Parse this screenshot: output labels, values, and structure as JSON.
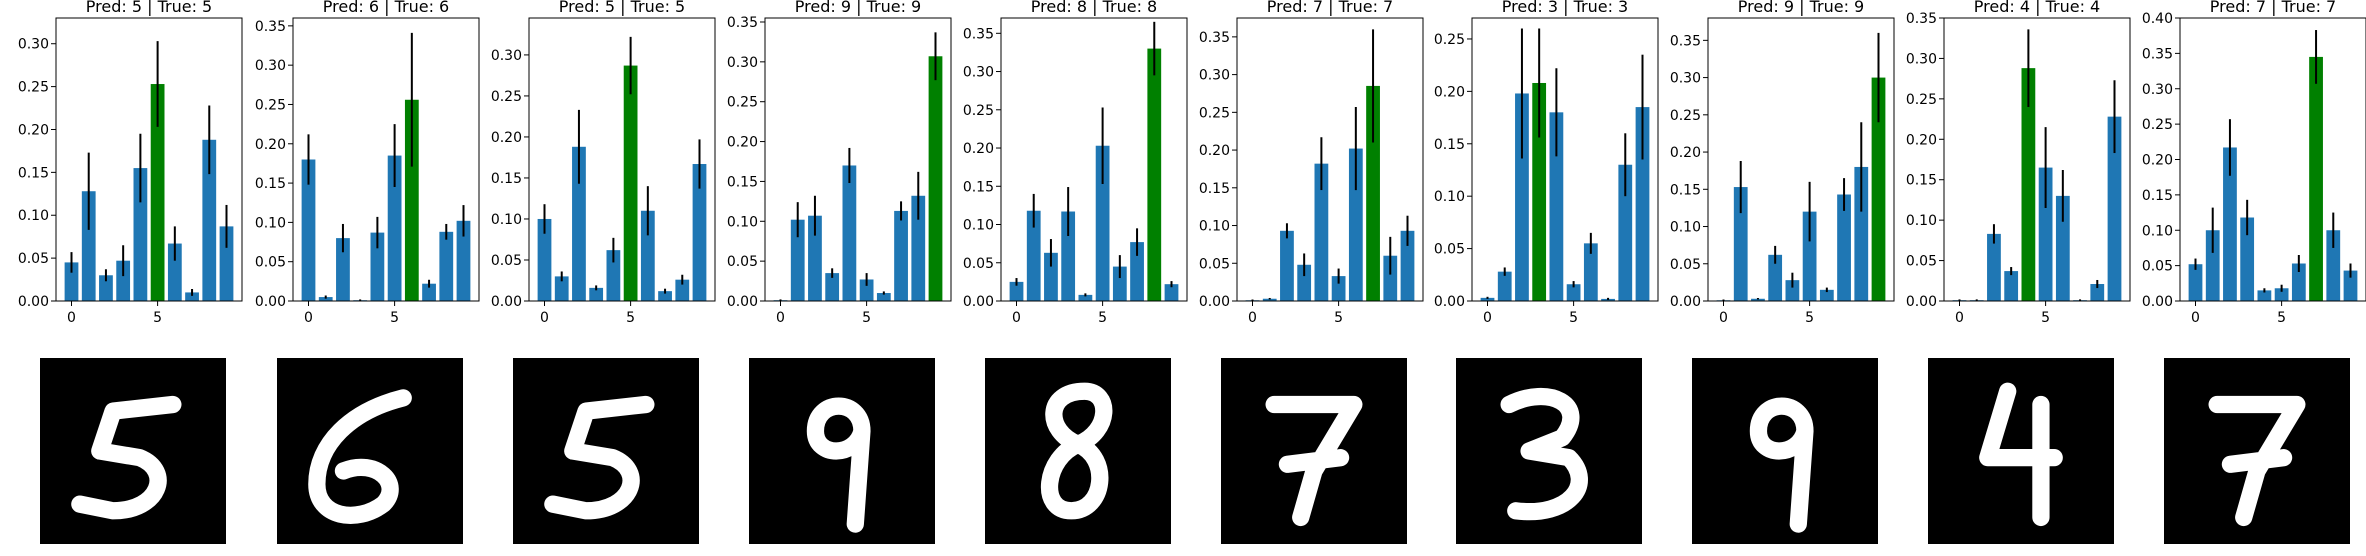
{
  "colors": {
    "bar": "#1f77b4",
    "highlight": "#008000",
    "error": "#000000",
    "axis": "#000000",
    "image_bg": "#000000",
    "digit": "#ffffff"
  },
  "panels_meta": {
    "x_ticks": [
      0,
      5
    ],
    "x_range": [
      -0.9,
      9.9
    ]
  },
  "chart_data": [
    {
      "type": "bar",
      "title": "Pred: 5 | True: 5",
      "highlight_index": 5,
      "categories": [
        0,
        1,
        2,
        3,
        4,
        5,
        6,
        7,
        8,
        9
      ],
      "values": [
        0.045,
        0.128,
        0.03,
        0.047,
        0.155,
        0.253,
        0.067,
        0.01,
        0.188,
        0.087
      ],
      "errors": [
        0.012,
        0.045,
        0.007,
        0.018,
        0.04,
        0.05,
        0.02,
        0.004,
        0.04,
        0.025
      ],
      "ylim": [
        0,
        0.33
      ],
      "yticks": [
        "0.00",
        "0.05",
        "0.10",
        "0.15",
        "0.20",
        "0.25",
        "0.30"
      ],
      "digit": "5"
    },
    {
      "type": "bar",
      "title": "Pred: 6 | True: 6",
      "highlight_index": 6,
      "categories": [
        0,
        1,
        2,
        3,
        4,
        5,
        6,
        7,
        8,
        9
      ],
      "values": [
        0.18,
        0.005,
        0.08,
        0.001,
        0.087,
        0.185,
        0.256,
        0.022,
        0.088,
        0.102
      ],
      "errors": [
        0.032,
        0.002,
        0.018,
        0.001,
        0.02,
        0.04,
        0.085,
        0.005,
        0.01,
        0.02
      ],
      "ylim": [
        0,
        0.36
      ],
      "yticks": [
        "0.00",
        "0.05",
        "0.10",
        "0.15",
        "0.20",
        "0.25",
        "0.30",
        "0.35"
      ],
      "digit": "6"
    },
    {
      "type": "bar",
      "title": "Pred: 5 | True: 5",
      "highlight_index": 5,
      "categories": [
        0,
        1,
        2,
        3,
        4,
        5,
        6,
        7,
        8,
        9
      ],
      "values": [
        0.1,
        0.03,
        0.188,
        0.016,
        0.062,
        0.287,
        0.11,
        0.012,
        0.026,
        0.167
      ],
      "errors": [
        0.018,
        0.006,
        0.045,
        0.003,
        0.015,
        0.035,
        0.03,
        0.003,
        0.006,
        0.03
      ],
      "ylim": [
        0,
        0.345
      ],
      "yticks": [
        "0.00",
        "0.05",
        "0.10",
        "0.15",
        "0.20",
        "0.25",
        "0.30"
      ],
      "digit": "5"
    },
    {
      "type": "bar",
      "title": "Pred: 9 | True: 9",
      "highlight_index": 9,
      "categories": [
        0,
        1,
        2,
        3,
        4,
        5,
        6,
        7,
        8,
        9
      ],
      "values": [
        0.001,
        0.102,
        0.107,
        0.035,
        0.17,
        0.027,
        0.01,
        0.113,
        0.132,
        0.307
      ],
      "errors": [
        0.001,
        0.022,
        0.025,
        0.006,
        0.022,
        0.008,
        0.002,
        0.012,
        0.03,
        0.03
      ],
      "ylim": [
        0,
        0.355
      ],
      "yticks": [
        "0.00",
        "0.05",
        "0.10",
        "0.15",
        "0.20",
        "0.25",
        "0.30",
        "0.35"
      ],
      "digit": "9"
    },
    {
      "type": "bar",
      "title": "Pred: 8 | True: 8",
      "highlight_index": 8,
      "categories": [
        0,
        1,
        2,
        3,
        4,
        5,
        6,
        7,
        8,
        9
      ],
      "values": [
        0.025,
        0.118,
        0.063,
        0.117,
        0.008,
        0.203,
        0.045,
        0.077,
        0.33,
        0.022
      ],
      "errors": [
        0.005,
        0.022,
        0.018,
        0.032,
        0.002,
        0.05,
        0.015,
        0.018,
        0.035,
        0.004
      ],
      "ylim": [
        0,
        0.37
      ],
      "yticks": [
        "0.00",
        "0.05",
        "0.10",
        "0.15",
        "0.20",
        "0.25",
        "0.30",
        "0.35"
      ],
      "digit": "8"
    },
    {
      "type": "bar",
      "title": "Pred: 7 | True: 7",
      "highlight_index": 7,
      "categories": [
        0,
        1,
        2,
        3,
        4,
        5,
        6,
        7,
        8,
        9
      ],
      "values": [
        0.001,
        0.003,
        0.093,
        0.048,
        0.182,
        0.033,
        0.202,
        0.285,
        0.06,
        0.093
      ],
      "errors": [
        0.001,
        0.001,
        0.01,
        0.015,
        0.035,
        0.01,
        0.055,
        0.075,
        0.025,
        0.02
      ],
      "ylim": [
        0,
        0.375
      ],
      "yticks": [
        "0.00",
        "0.05",
        "0.10",
        "0.15",
        "0.20",
        "0.25",
        "0.30",
        "0.35"
      ],
      "digit": "7"
    },
    {
      "type": "bar",
      "title": "Pred: 3 | True: 3",
      "highlight_index": 3,
      "categories": [
        0,
        1,
        2,
        3,
        4,
        5,
        6,
        7,
        8,
        9
      ],
      "values": [
        0.003,
        0.028,
        0.198,
        0.208,
        0.18,
        0.016,
        0.055,
        0.002,
        0.13,
        0.185
      ],
      "errors": [
        0.001,
        0.004,
        0.062,
        0.052,
        0.042,
        0.003,
        0.01,
        0.001,
        0.03,
        0.05
      ],
      "ylim": [
        0,
        0.27
      ],
      "yticks": [
        "0.00",
        "0.05",
        "0.10",
        "0.15",
        "0.20",
        "0.25"
      ],
      "digit": "3"
    },
    {
      "type": "bar",
      "title": "Pred: 9 | True: 9",
      "highlight_index": 9,
      "categories": [
        0,
        1,
        2,
        3,
        4,
        5,
        6,
        7,
        8,
        9
      ],
      "values": [
        0.001,
        0.153,
        0.003,
        0.062,
        0.028,
        0.12,
        0.015,
        0.143,
        0.18,
        0.3
      ],
      "errors": [
        0.001,
        0.035,
        0.001,
        0.012,
        0.01,
        0.04,
        0.003,
        0.022,
        0.06,
        0.06
      ],
      "ylim": [
        0,
        0.38
      ],
      "yticks": [
        "0.00",
        "0.05",
        "0.10",
        "0.15",
        "0.20",
        "0.25",
        "0.30",
        "0.35"
      ],
      "digit": "9"
    },
    {
      "type": "bar",
      "title": "Pred: 4 | True: 4",
      "highlight_index": 4,
      "categories": [
        0,
        1,
        2,
        3,
        4,
        5,
        6,
        7,
        8,
        9
      ],
      "values": [
        0.001,
        0.001,
        0.083,
        0.037,
        0.288,
        0.165,
        0.13,
        0.001,
        0.021,
        0.228
      ],
      "errors": [
        0.001,
        0.001,
        0.012,
        0.005,
        0.048,
        0.05,
        0.032,
        0.001,
        0.005,
        0.045
      ],
      "ylim": [
        0,
        0.35
      ],
      "yticks": [
        "0.00",
        "0.05",
        "0.10",
        "0.15",
        "0.20",
        "0.25",
        "0.30",
        "0.35"
      ],
      "digit": "4"
    },
    {
      "type": "bar",
      "title": "Pred: 7 | True: 7",
      "highlight_index": 7,
      "categories": [
        0,
        1,
        2,
        3,
        4,
        5,
        6,
        7,
        8,
        9
      ],
      "values": [
        0.052,
        0.1,
        0.217,
        0.118,
        0.015,
        0.018,
        0.053,
        0.345,
        0.1,
        0.043
      ],
      "errors": [
        0.008,
        0.032,
        0.04,
        0.025,
        0.003,
        0.005,
        0.012,
        0.038,
        0.025,
        0.01
      ],
      "ylim": [
        0,
        0.4
      ],
      "yticks": [
        "0.00",
        "0.05",
        "0.10",
        "0.15",
        "0.20",
        "0.25",
        "0.30",
        "0.35",
        "0.40"
      ],
      "digit": "7"
    }
  ]
}
